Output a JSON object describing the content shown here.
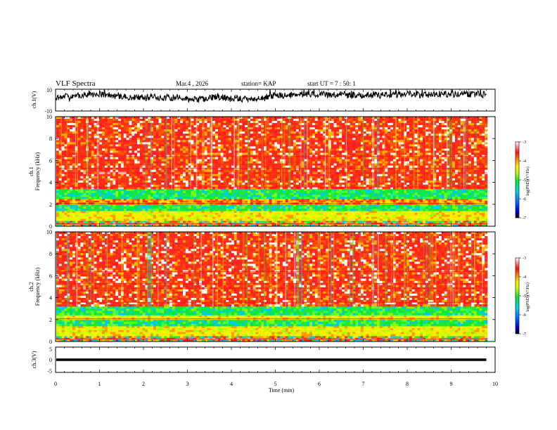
{
  "header": {
    "title": "VLF Spectra",
    "date": "Mar.4 , 2026",
    "station": "station= KAP",
    "start_ut": "start UT =  7 : 50: 1"
  },
  "panels": {
    "ch1_wave_label": "ch.1(V)",
    "ch1_spec_label_a": "ch.1",
    "ch1_spec_label_b": "Frequency (kHz)",
    "ch2_spec_label_a": "ch.2",
    "ch2_spec_label_b": "Frequency (kHz)",
    "ch3_wave_label": "ch.3(V)"
  },
  "colors": {
    "axis": "#000000",
    "spectrum_dominant": "#ff2a1a",
    "spectrum_band": "#22e834",
    "colorbar_high": "#ffffff",
    "colorbar_low": "#000000"
  },
  "chart_data": [
    {
      "type": "line",
      "name": "ch.1 waveform",
      "ylabel": "ch.1(V)",
      "ylim": [
        -10,
        10
      ],
      "yticks": [
        "10",
        "-10"
      ],
      "x_range_min": [
        0,
        9.8
      ],
      "description_values": "noise-like trace centered near 0 V, mostly between -3 and +6 V"
    },
    {
      "type": "heatmap",
      "name": "ch.1 spectrogram",
      "ylabel": "Frequency (kHz)",
      "ylim": [
        0,
        10
      ],
      "yticks": [
        "0",
        "2",
        "4",
        "6",
        "8",
        "10"
      ],
      "bands_khz": [
        {
          "range": [
            0,
            0.5
          ],
          "level": "mixed"
        },
        {
          "range": [
            0.5,
            1.4
          ],
          "level": "yellow"
        },
        {
          "range": [
            1.4,
            2.0
          ],
          "level": "green"
        },
        {
          "range": [
            2.0,
            2.5
          ],
          "level": "red-yellow"
        },
        {
          "range": [
            2.5,
            3.4
          ],
          "level": "green"
        },
        {
          "range": [
            3.4,
            10
          ],
          "level": "red"
        }
      ],
      "colorbar": {
        "label": "log(PSD)(V²/Hz)",
        "ticks": [
          "-3",
          "-4",
          "-5",
          "-6",
          "-7"
        ],
        "range": [
          -7,
          -3
        ]
      }
    },
    {
      "type": "heatmap",
      "name": "ch.2 spectrogram",
      "ylabel": "Frequency (kHz)",
      "ylim": [
        0,
        10
      ],
      "yticks": [
        "0",
        "2",
        "4",
        "6",
        "8",
        "10"
      ],
      "bands_khz": [
        {
          "range": [
            0,
            0.5
          ],
          "level": "mixed"
        },
        {
          "range": [
            0.5,
            1.4
          ],
          "level": "yellow"
        },
        {
          "range": [
            1.4,
            2.0
          ],
          "level": "green"
        },
        {
          "range": [
            2.0,
            2.4
          ],
          "level": "yellow"
        },
        {
          "range": [
            2.4,
            3.2
          ],
          "level": "green"
        },
        {
          "range": [
            3.2,
            10
          ],
          "level": "red"
        }
      ],
      "colorbar": {
        "label": "log(PSD)(V²/Hz)",
        "ticks": [
          "-3",
          "-4",
          "-5",
          "-6",
          "-7"
        ],
        "range": [
          -7,
          -3
        ]
      }
    },
    {
      "type": "line",
      "name": "ch.3 waveform",
      "ylabel": "ch.3(V)",
      "ylim": [
        -5,
        5
      ],
      "yticks": [
        "5",
        "0",
        "-5"
      ],
      "value_band": [
        -0.5,
        0.5
      ],
      "x_range_min": [
        0,
        9.8
      ]
    }
  ],
  "xaxis": {
    "label": "Time (min)",
    "range": [
      0,
      10
    ],
    "ticks": [
      "0",
      "1",
      "2",
      "3",
      "4",
      "5",
      "6",
      "7",
      "8",
      "9",
      "10"
    ]
  }
}
